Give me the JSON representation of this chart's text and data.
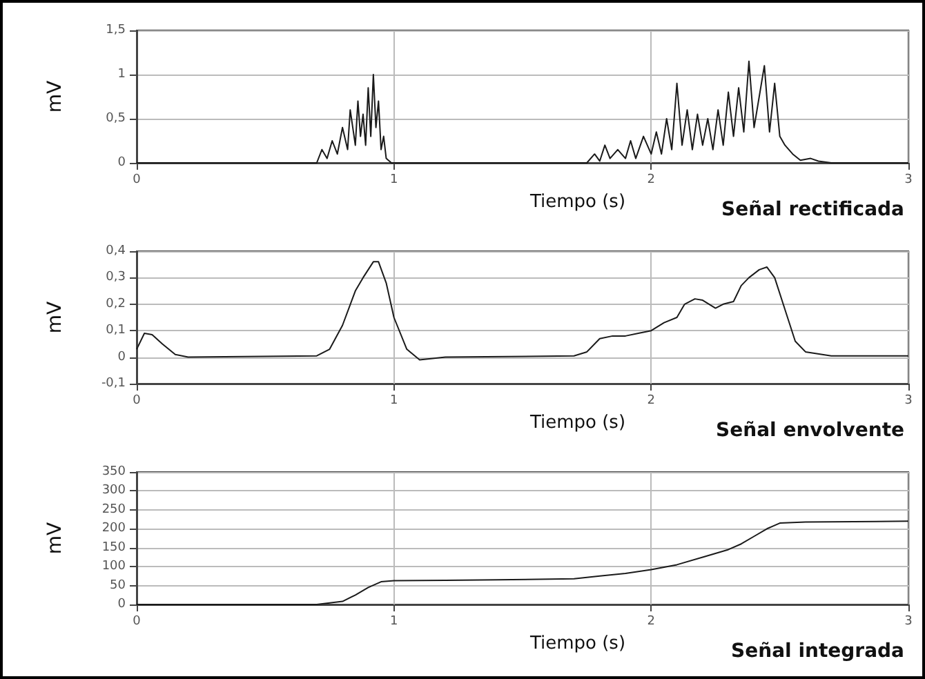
{
  "chart_data": [
    {
      "type": "line",
      "title": "Señal rectificada",
      "xlabel": "Tiempo (s)",
      "ylabel": "mV",
      "xlim": [
        0,
        3
      ],
      "xticks": [
        0,
        1,
        2,
        3
      ],
      "ylim": [
        0,
        1.5
      ],
      "yticks": [
        0,
        {
          "value": 0.5,
          "label": "0,5"
        },
        1,
        {
          "value": 1.5,
          "label": "1,5"
        }
      ],
      "grid": true,
      "marker": "none",
      "line_style": "solid",
      "series": [
        {
          "color": "#1a1a1a",
          "x": [
            0,
            0.7,
            0.72,
            0.74,
            0.76,
            0.78,
            0.8,
            0.82,
            0.83,
            0.85,
            0.86,
            0.87,
            0.88,
            0.89,
            0.9,
            0.91,
            0.92,
            0.93,
            0.94,
            0.95,
            0.96,
            0.97,
            0.99,
            1.5,
            1.75,
            1.78,
            1.8,
            1.82,
            1.84,
            1.87,
            1.9,
            1.92,
            1.94,
            1.97,
            2.0,
            2.02,
            2.04,
            2.06,
            2.08,
            2.1,
            2.12,
            2.14,
            2.16,
            2.18,
            2.2,
            2.22,
            2.24,
            2.26,
            2.28,
            2.3,
            2.32,
            2.34,
            2.36,
            2.38,
            2.4,
            2.42,
            2.44,
            2.46,
            2.48,
            2.5,
            2.52,
            2.55,
            2.58,
            2.62,
            2.65,
            2.7,
            3
          ],
          "values": [
            0,
            0,
            0.15,
            0.05,
            0.25,
            0.1,
            0.4,
            0.15,
            0.6,
            0.2,
            0.7,
            0.3,
            0.55,
            0.2,
            0.85,
            0.3,
            1.0,
            0.4,
            0.7,
            0.15,
            0.3,
            0.05,
            0,
            0,
            0,
            0.1,
            0.02,
            0.2,
            0.05,
            0.15,
            0.05,
            0.25,
            0.05,
            0.3,
            0.1,
            0.35,
            0.1,
            0.5,
            0.15,
            0.9,
            0.2,
            0.6,
            0.15,
            0.55,
            0.2,
            0.5,
            0.15,
            0.6,
            0.2,
            0.8,
            0.3,
            0.85,
            0.35,
            1.15,
            0.4,
            0.75,
            1.1,
            0.35,
            0.9,
            0.3,
            0.2,
            0.1,
            0.03,
            0.05,
            0.02,
            0,
            0
          ]
        }
      ]
    },
    {
      "type": "line",
      "title": "Señal envolvente",
      "xlabel": "Tiempo (s)",
      "ylabel": "mV",
      "xlim": [
        0,
        3
      ],
      "xticks": [
        0,
        1,
        2,
        3
      ],
      "ylim": [
        -0.1,
        0.4
      ],
      "yticks": [
        {
          "value": -0.1,
          "label": "-0,1"
        },
        0,
        {
          "value": 0.1,
          "label": "0,1"
        },
        {
          "value": 0.2,
          "label": "0,2"
        },
        {
          "value": 0.3,
          "label": "0,3"
        },
        {
          "value": 0.4,
          "label": "0,4"
        }
      ],
      "grid": true,
      "marker": "none",
      "line_style": "solid",
      "series": [
        {
          "color": "#1a1a1a",
          "x": [
            0,
            0.03,
            0.06,
            0.1,
            0.15,
            0.2,
            0.7,
            0.75,
            0.8,
            0.85,
            0.88,
            0.92,
            0.94,
            0.97,
            1.0,
            1.05,
            1.1,
            1.2,
            1.7,
            1.75,
            1.8,
            1.85,
            1.9,
            1.95,
            2.0,
            2.05,
            2.1,
            2.13,
            2.17,
            2.2,
            2.25,
            2.28,
            2.32,
            2.35,
            2.38,
            2.42,
            2.45,
            2.48,
            2.52,
            2.56,
            2.6,
            2.7,
            3
          ],
          "values": [
            0.03,
            0.09,
            0.085,
            0.05,
            0.01,
            0,
            0.005,
            0.03,
            0.12,
            0.25,
            0.3,
            0.36,
            0.36,
            0.28,
            0.15,
            0.03,
            -0.01,
            0,
            0.005,
            0.02,
            0.07,
            0.08,
            0.08,
            0.09,
            0.1,
            0.13,
            0.15,
            0.2,
            0.22,
            0.215,
            0.185,
            0.2,
            0.21,
            0.27,
            0.3,
            0.33,
            0.34,
            0.3,
            0.18,
            0.06,
            0.02,
            0.005,
            0.005
          ]
        }
      ]
    },
    {
      "type": "line",
      "title": "Señal integrada",
      "xlabel": "Tiempo (s)",
      "ylabel": "mV",
      "xlim": [
        0,
        3
      ],
      "xticks": [
        0,
        1,
        2,
        3
      ],
      "ylim": [
        0,
        350
      ],
      "yticks": [
        0,
        50,
        100,
        150,
        200,
        250,
        300,
        350
      ],
      "grid": true,
      "marker": "none",
      "line_style": "solid",
      "series": [
        {
          "color": "#1a1a1a",
          "x": [
            0,
            0.7,
            0.8,
            0.85,
            0.9,
            0.95,
            1.0,
            1.2,
            1.4,
            1.7,
            1.8,
            1.9,
            2.0,
            2.1,
            2.2,
            2.3,
            2.35,
            2.4,
            2.45,
            2.5,
            2.6,
            3
          ],
          "values": [
            0,
            0,
            8,
            25,
            45,
            60,
            63,
            64,
            65,
            68,
            75,
            82,
            92,
            105,
            125,
            145,
            160,
            180,
            200,
            215,
            218,
            220
          ]
        }
      ]
    }
  ]
}
